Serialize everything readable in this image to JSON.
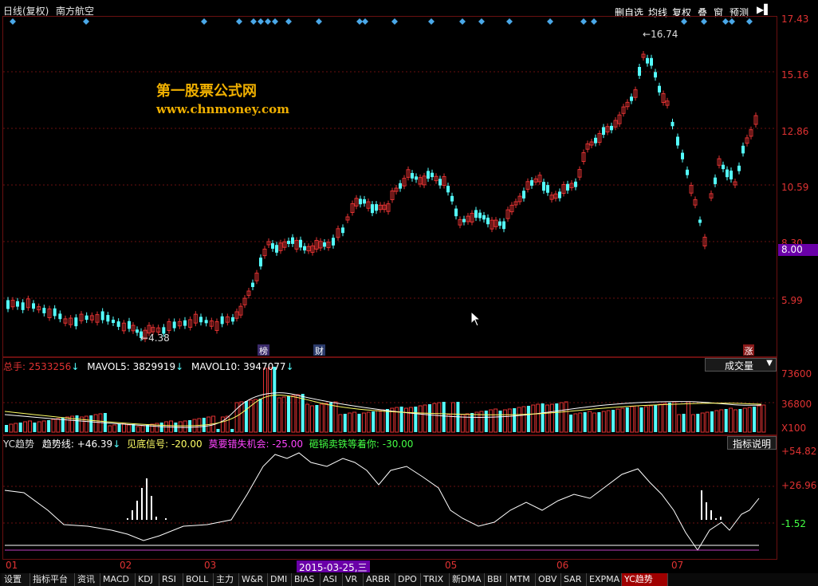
{
  "header": {
    "period": "日线(复权)",
    "stock_name": "南方航空",
    "buttons": [
      "删自选",
      "均线",
      "复权",
      "叠",
      "窗",
      "预测"
    ]
  },
  "watermark": {
    "line1": "第一股票公式网",
    "line2": "www.chnmoney.com"
  },
  "price_axis": [
    "17.43",
    "15.16",
    "12.86",
    "10.59",
    "8.30",
    "5.99"
  ],
  "price_badge": "8.00",
  "price_high_label": "16.74",
  "price_low_label": "4.38",
  "event_markers": {
    "bang": "榜",
    "cai": "财",
    "zhang": "涨"
  },
  "volume_panel": {
    "total_label": "总手:",
    "total_value": "2533256",
    "mavol5_label": "MAVOL5:",
    "mavol5_value": "3829919",
    "mavol10_label": "MAVOL10:",
    "mavol10_value": "3947077",
    "dropdown": "成交量",
    "axis": [
      "73600",
      "36800",
      "X100"
    ]
  },
  "indicator_panel": {
    "name": "YC趋势",
    "trend_label": "趋势线:",
    "trend_value": "+46.39",
    "bottom_label": "见底信号:",
    "bottom_value": "-20.00",
    "miss_label": "莫要错失机会:",
    "miss_value": "-25.00",
    "sell_label": "砸锅卖铁等着你:",
    "sell_value": "-30.00",
    "help_button": "指标说明",
    "axis": [
      "+54.82",
      "+26.96",
      "-1.52"
    ]
  },
  "time_axis": {
    "months": [
      "01",
      "02",
      "03",
      "05",
      "06",
      "07"
    ],
    "cursor_date": "2015-03-25,三"
  },
  "tabs": [
    "设置",
    "指标平台",
    "资讯",
    "MACD",
    "KDJ",
    "RSI",
    "BOLL",
    "主力",
    "W&R",
    "DMI",
    "BIAS",
    "ASI",
    "VR",
    "ARBR",
    "DPO",
    "TRIX",
    "新DMA",
    "BBI",
    "MTM",
    "OBV",
    "SAR",
    "EXPMA",
    "YC趋势"
  ],
  "active_tab": "YC趋势",
  "colors": {
    "up": "#e03232",
    "down": "#54ffff",
    "ma5": "#ffffff",
    "ma10": "#ffff66",
    "label_yellow": "#ffff66",
    "label_magenta": "#ff44ff",
    "label_green": "#44ff44",
    "badge": "#6a00a8",
    "marker": "#4aa8e8"
  },
  "chart_data": {
    "type": "candlestick",
    "price_ticks": [
      17.43,
      15.16,
      12.86,
      10.59,
      8.3,
      5.99
    ],
    "high": 16.74,
    "low": 4.38,
    "volume_ticks": [
      73600,
      36800
    ],
    "indicator_ticks": [
      54.82,
      26.96,
      -1.52
    ],
    "last_values": {
      "trend": 46.39,
      "bottom": -20.0,
      "miss": -25.0,
      "sell": -30.0
    }
  }
}
